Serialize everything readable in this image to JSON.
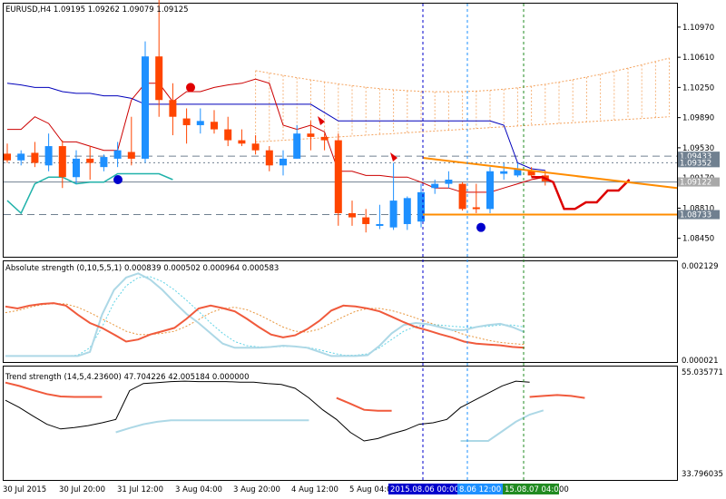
{
  "colors": {
    "background": "#ffffff",
    "bull": "#1e90ff",
    "bear": "#ff4500",
    "tenkan": "#cc0000",
    "kijun": "#0000bb",
    "chikou": "#20b2aa",
    "kumo": "#f4a460",
    "trendline": "#ff8c00",
    "red_line": "#dd0000",
    "abs_main": "#f05a3c",
    "abs_signal": "#add8e6",
    "trend_bull": "#000000",
    "trend_bear": "#f05a3c",
    "vline_blue": "#0000cc",
    "vline_green": "#228b22"
  },
  "main_pane": {
    "title": "EURUSD,H4  1.09195 1.09262 1.09079 1.09125",
    "price_levels": [
      {
        "value": 1.0943,
        "label": "1.09433",
        "style": "dashed",
        "highlight": true
      },
      {
        "value": 1.09352,
        "label": "1.09352",
        "style": "dotted",
        "highlight": true
      },
      {
        "value": 1.09122,
        "label": "1.09122",
        "style": "solid",
        "highlight": true
      },
      {
        "value": 1.08733,
        "label": "1.08733",
        "style": "dashed",
        "highlight": true
      }
    ],
    "y_labels": [
      "1.10970",
      "1.10610",
      "1.10250",
      "1.09890",
      "1.09530",
      "1.09170",
      "1.08810",
      "1.08450"
    ],
    "y_values": [
      1.1097,
      1.1061,
      1.1025,
      1.0989,
      1.0953,
      1.0917,
      1.0881,
      1.0845
    ],
    "y_range": [
      1.0823,
      1.1125
    ],
    "candles": [
      [
        1.0946,
        1.0958,
        1.0935,
        1.0938
      ],
      [
        1.0938,
        1.095,
        1.0932,
        1.0946
      ],
      [
        1.0947,
        1.096,
        1.093,
        1.0935
      ],
      [
        1.0932,
        1.097,
        1.0925,
        1.0955
      ],
      [
        1.0955,
        1.0962,
        1.0905,
        1.0918
      ],
      [
        1.0918,
        1.095,
        1.091,
        1.094
      ],
      [
        1.094,
        1.0955,
        1.0915,
        1.0935
      ],
      [
        1.093,
        1.0945,
        1.0925,
        1.0942
      ],
      [
        1.094,
        1.096,
        1.093,
        1.095
      ],
      [
        1.0948,
        1.099,
        1.0932,
        1.094
      ],
      [
        1.094,
        1.108,
        1.0935,
        1.1062
      ],
      [
        1.1062,
        1.1135,
        1.099,
        1.101
      ],
      [
        1.101,
        1.103,
        1.0968,
        1.099
      ],
      [
        1.0988,
        1.1,
        1.0958,
        1.098
      ],
      [
        1.098,
        1.1,
        1.097,
        1.0985
      ],
      [
        1.0984,
        1.0998,
        1.097,
        1.0975
      ],
      [
        1.0975,
        1.099,
        1.0955,
        1.0962
      ],
      [
        1.0962,
        1.0975,
        1.0955,
        1.0958
      ],
      [
        1.0958,
        1.0968,
        1.0945,
        1.095
      ],
      [
        1.095,
        1.0955,
        1.0925,
        1.0932
      ],
      [
        1.0932,
        1.095,
        1.092,
        1.094
      ],
      [
        1.094,
        1.098,
        1.094,
        1.097
      ],
      [
        1.097,
        1.0985,
        1.095,
        1.0966
      ],
      [
        1.0966,
        1.097,
        1.095,
        1.0962
      ],
      [
        1.0962,
        1.097,
        1.086,
        1.0875
      ],
      [
        1.0875,
        1.089,
        1.086,
        1.087
      ],
      [
        1.087,
        1.088,
        1.0852,
        1.0862
      ],
      [
        1.0862,
        1.0885,
        1.0856,
        1.0862
      ],
      [
        1.0858,
        1.0935,
        1.0855,
        1.089
      ],
      [
        1.0862,
        1.0895,
        1.0855,
        1.0893
      ],
      [
        1.0865,
        1.091,
        1.0858,
        1.09
      ],
      [
        1.0905,
        1.0915,
        1.0898,
        1.091
      ],
      [
        1.091,
        1.0925,
        1.0905,
        1.0915
      ],
      [
        1.091,
        1.0912,
        1.0878,
        1.088
      ],
      [
        1.0882,
        1.091,
        1.0875,
        1.088
      ],
      [
        1.088,
        1.093,
        1.0875,
        1.0925
      ],
      [
        1.0922,
        1.0935,
        1.0915,
        1.0925
      ],
      [
        1.092,
        1.0935,
        1.0918,
        1.0928
      ],
      [
        1.0926,
        1.093,
        1.0918,
        1.092
      ],
      [
        1.092,
        1.0926,
        1.0908,
        1.0913
      ]
    ],
    "tenkan": [
      1.0975,
      1.0975,
      1.099,
      1.0982,
      1.096,
      1.096,
      1.0955,
      1.095,
      1.095,
      1.101,
      1.103,
      1.103,
      1.1008,
      1.102,
      1.102,
      1.1025,
      1.1028,
      1.103,
      1.1035,
      1.103,
      1.098,
      1.0975,
      1.098,
      1.0972,
      1.0925,
      1.0925,
      1.092,
      1.092,
      1.0918,
      1.0918,
      1.0912,
      1.0905,
      1.0905,
      1.09,
      1.09,
      1.09,
      1.0905,
      1.091,
      1.0915,
      1.0918
    ],
    "kijun": [
      1.103,
      1.1028,
      1.1025,
      1.1025,
      1.102,
      1.1018,
      1.1018,
      1.1015,
      1.1015,
      1.1012,
      1.1005,
      1.1005,
      1.1005,
      1.1005,
      1.1005,
      1.1005,
      1.1005,
      1.1005,
      1.1005,
      1.1005,
      1.1005,
      1.1005,
      1.1005,
      1.0995,
      1.0985,
      1.0985,
      1.0985,
      1.0985,
      1.0985,
      1.0985,
      1.0985,
      1.0985,
      1.0985,
      1.0985,
      1.0985,
      1.0985,
      1.098,
      1.0935,
      1.0928,
      1.0926
    ],
    "chikou": [
      1.089,
      1.0875,
      1.091,
      1.0918,
      1.0918,
      1.091,
      1.0912,
      1.0912,
      1.0922,
      1.0922,
      1.0922,
      1.0922,
      1.0915
    ],
    "red_line": [
      1.0918,
      1.0918,
      1.0912,
      1.088,
      1.088,
      1.0888,
      1.0888,
      1.0902,
      1.0902,
      1.0915
    ],
    "trendline": [
      1.0941,
      1.0905
    ],
    "support": 1.08733
  },
  "abs_pane": {
    "title": "Absolute strength (0,10,5,5,1) 0.000839 0.000502 0.000964 0.000583",
    "y_labels": [
      "0.002129",
      "0.000021"
    ],
    "main": [
      0.0013,
      0.00125,
      0.00132,
      0.00136,
      0.00138,
      0.00132,
      0.0011,
      0.0009,
      0.00078,
      0.00062,
      0.00045,
      0.0005,
      0.00062,
      0.0007,
      0.00078,
      0.001,
      0.00125,
      0.00132,
      0.00126,
      0.00118,
      0.001,
      0.0008,
      0.00062,
      0.00055,
      0.0006,
      0.00075,
      0.00095,
      0.0012,
      0.00132,
      0.0013,
      0.00125,
      0.00118,
      0.00105,
      0.00092,
      0.0008,
      0.00072,
      0.00063,
      0.00055,
      0.00045,
      0.0004,
      0.00038,
      0.00036,
      0.00032,
      0.0003
    ],
    "main_dotted": [
      0.00115,
      0.0012,
      0.00128,
      0.00134,
      0.00137,
      0.00136,
      0.00128,
      0.00115,
      0.001,
      0.00085,
      0.0007,
      0.00062,
      0.00062,
      0.00065,
      0.0007,
      0.00082,
      0.00098,
      0.00115,
      0.00125,
      0.00128,
      0.00122,
      0.0011,
      0.00095,
      0.0008,
      0.0007,
      0.00068,
      0.00075,
      0.0009,
      0.00105,
      0.00118,
      0.00125,
      0.00125,
      0.0012,
      0.00112,
      0.00102,
      0.00092,
      0.00082,
      0.00072,
      0.00062,
      0.00055,
      0.00048,
      0.00043,
      0.0004,
      0.00038
    ],
    "signal": [
      0.0001,
      0.0001,
      0.0001,
      0.0001,
      0.0001,
      0.0001,
      0.0001,
      0.0002,
      0.0011,
      0.0017,
      0.002,
      0.0021,
      0.00195,
      0.0017,
      0.0014,
      0.00112,
      0.0009,
      0.00065,
      0.0004,
      0.0003,
      0.0003,
      0.0003,
      0.00032,
      0.00035,
      0.00033,
      0.0003,
      0.0002,
      0.0001,
      0.0001,
      0.0001,
      0.00012,
      0.00035,
      0.00065,
      0.00085,
      0.0009,
      0.00087,
      0.0008,
      0.00073,
      0.00073,
      0.0008,
      0.00085,
      0.00088,
      0.0008,
      0.00068
    ],
    "signal_dotted": [
      0.0001,
      0.0001,
      0.0001,
      0.0001,
      0.0001,
      0.0001,
      0.00012,
      0.0003,
      0.0008,
      0.0014,
      0.0018,
      0.002,
      0.00202,
      0.0019,
      0.0017,
      0.00145,
      0.00118,
      0.0009,
      0.00065,
      0.00045,
      0.00035,
      0.00032,
      0.00032,
      0.00033,
      0.00033,
      0.00031,
      0.00025,
      0.00018,
      0.00012,
      0.00012,
      0.00015,
      0.0003,
      0.0005,
      0.0007,
      0.00082,
      0.00086,
      0.00085,
      0.00082,
      0.0008,
      0.0008,
      0.00082,
      0.00085,
      0.00085,
      0.0008
    ],
    "y_range": [
      2.1e-05,
      0.002129
    ]
  },
  "trend_pane": {
    "title": "Trend strength (14,5,4.23600) 47.704226 42.005184 0.000000",
    "y_labels": [
      "55.035771",
      "33.796035"
    ],
    "y_range": [
      33.796035,
      55.035771
    ],
    "bear_segments": [
      {
        "start": 0,
        "values": [
          53.2,
          52.5,
          51.6,
          50.8,
          50.3,
          50.2,
          50.2,
          50.2
        ]
      },
      {
        "start": 24,
        "values": [
          50.0,
          48.8,
          47.5,
          47.3,
          47.3
        ]
      },
      {
        "start": 38,
        "values": [
          50.2,
          50.4,
          50.6,
          50.4,
          50.0
        ]
      }
    ],
    "bull_segments": [
      {
        "start": 0,
        "values": [
          49.5,
          48.0,
          46.2,
          44.5,
          43.5,
          43.8,
          44.2,
          44.8,
          45.5,
          51.5,
          53.0,
          53.2,
          53.4,
          53.5,
          53.4,
          53.4,
          53.4,
          53.3,
          53.3,
          53.0,
          52.8,
          52.0,
          50.0,
          47.5,
          45.5,
          42.8,
          41.0,
          41.5,
          42.5,
          43.3,
          44.5,
          44.8,
          45.5,
          48.0,
          49.5,
          51.0,
          52.5,
          53.5,
          53.3
        ]
      }
    ],
    "zero_segments": [
      {
        "start": 8,
        "values": [
          42.8,
          43.7,
          44.5,
          45.0,
          45.3,
          45.3,
          45.3,
          45.3,
          45.3,
          45.3,
          45.3,
          45.3,
          45.3,
          45.3,
          45.3
        ]
      },
      {
        "start": 33,
        "values": [
          41.0,
          41.0,
          41.0,
          43.0,
          45.0,
          46.5,
          47.4
        ]
      }
    ]
  },
  "x_axis": {
    "labels": [
      "30 Jul 2015",
      "30 Jul 20:00",
      "31 Jul 12:00",
      "3 Aug 04:00",
      "3 Aug 20:00",
      "4 Aug 12:00",
      "5 Aug 04:00"
    ],
    "highlight_labels": [
      {
        "text": "2015.08.06 00:00",
        "color": "#0000cc"
      },
      {
        "text": "8.06 12:00",
        "color": "#1e90ff"
      },
      {
        "text": "15.08.07 04:00",
        "color": "#228b22"
      }
    ],
    "trailing_label": "00"
  }
}
